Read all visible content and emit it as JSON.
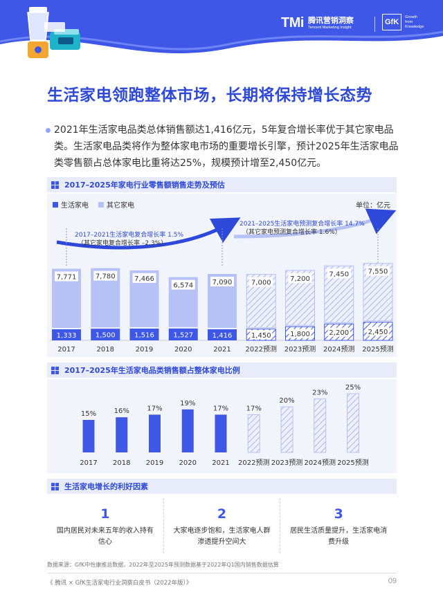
{
  "header": {
    "tmi_mark": "TMi",
    "tmi_name_cn": "腾讯营销洞察",
    "tmi_name_en": "Tencent Marketing Insight",
    "gfk_mark": "GfK",
    "gfk_tagline": [
      "Growth",
      "from",
      "Knowledge"
    ]
  },
  "title": "生活家电领跑整体市场，长期将保持增长态势",
  "intro": "2021年生活家电品类总体销售额达1,416亿元，5年复合增长率优于其它家电品类。生活家电品类将作为整体家电市场的重要增长引擎，预计2025年生活家电品类零售额占总体家电比重将达25%，规模预计增至2,450亿元。",
  "section1": {
    "label": "2017–2025年家电行业零售额销售走势及预估",
    "legend": [
      "生活家电",
      "其它家电"
    ],
    "unit": "单位：亿元",
    "note_left_1": "2017–2021生活家电复合增长率 1.5%",
    "note_left_2": "（其它家电复合增长率 –2.3%）",
    "note_right_1": "2021–2025生活家电预测复合增长率 14.7%",
    "note_right_2": "（其它家电预测复合增长率 1.6%）"
  },
  "section2": {
    "label": "2017–2025年生活家电品类销售额占整体家电比例"
  },
  "section3": {
    "label": "生活家电增长的利好因素",
    "factors": [
      {
        "num": "1",
        "desc": "国内居民对未来五年的收入持有信心"
      },
      {
        "num": "2",
        "desc": "大家电逐步饱和，生活家电人群渗透提升空间大"
      },
      {
        "num": "3",
        "desc": "居民生活质量提升，生活家电消费升级"
      }
    ]
  },
  "source": "数据来源：GfK中怡康推总数据，2022年至2025年预测数据基于2022年Q1国内销售数据估算",
  "footer": "《 腾讯 × GfK生活家电行业洞察白皮书（2022年版）》",
  "page_number": "09",
  "colors": {
    "primary": "#3f57e6",
    "title": "#2e49d9",
    "other": "#b6c2f5",
    "panel": "#f1f4fb"
  },
  "chart_data": [
    {
      "type": "bar",
      "categories": [
        "2017",
        "2018",
        "2019",
        "2020",
        "2021",
        "2022预测",
        "2023预测",
        "2024预测",
        "2025预测"
      ],
      "series": [
        {
          "name": "生活家电",
          "values": [
            1333,
            1500,
            1516,
            1527,
            1416,
            1450,
            1800,
            2200,
            2450
          ],
          "labels": [
            "1,333",
            "1,500",
            "1,516",
            "1,527",
            "1,416",
            "1,450",
            "1,800",
            "2,200",
            "2,450"
          ]
        },
        {
          "name": "其它家电",
          "values": [
            7771,
            7780,
            7466,
            6574,
            7090,
            7000,
            7200,
            7450,
            7550
          ],
          "labels": [
            "7,771",
            "7,780",
            "7,466",
            "6,574",
            "7,090",
            "7,000",
            "7,200",
            "7,450",
            "7,550"
          ]
        }
      ],
      "forecast_from_index": 5,
      "stacked": true
    },
    {
      "type": "bar",
      "categories": [
        "2017",
        "2018",
        "2019",
        "2020",
        "2021",
        "2022预测",
        "2023预测",
        "2024预测",
        "2025预测"
      ],
      "values": [
        15,
        16,
        17,
        19,
        17,
        17,
        20,
        23,
        25
      ],
      "labels": [
        "15%",
        "16%",
        "17%",
        "19%",
        "17%",
        "17%",
        "20%",
        "23%",
        "25%"
      ],
      "forecast_from_index": 5
    }
  ]
}
